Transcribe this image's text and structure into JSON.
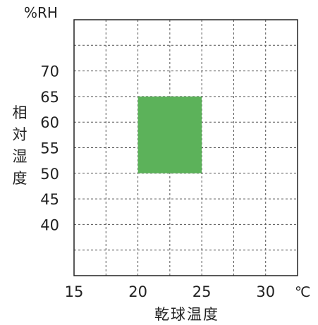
{
  "chart_data": {
    "type": "area",
    "x_unit": "℃",
    "y_unit": "%RH",
    "xlabel": "乾球温度",
    "ylabel": "相対湿度",
    "xlim": [
      15,
      32.5
    ],
    "ylim": [
      30,
      80
    ],
    "x_ticks": [
      15,
      20,
      25,
      30
    ],
    "x_tick_labels": [
      "15",
      "20",
      "25",
      "30"
    ],
    "y_ticks": [
      40,
      45,
      50,
      55,
      60,
      65,
      70
    ],
    "y_tick_labels": [
      "40",
      "45",
      "50",
      "55",
      "60",
      "65",
      "70"
    ],
    "x_grid": [
      17.5,
      20,
      22.5,
      25,
      27.5,
      30
    ],
    "y_grid": [
      35,
      40,
      45,
      50,
      55,
      60,
      65,
      70,
      75
    ],
    "grid": true,
    "grid_style": "dashed",
    "region": {
      "x": [
        20,
        25
      ],
      "y": [
        50,
        65
      ],
      "color": "#5cb25a"
    },
    "colors": {
      "axis": "#222222",
      "grid": "#555555"
    }
  }
}
